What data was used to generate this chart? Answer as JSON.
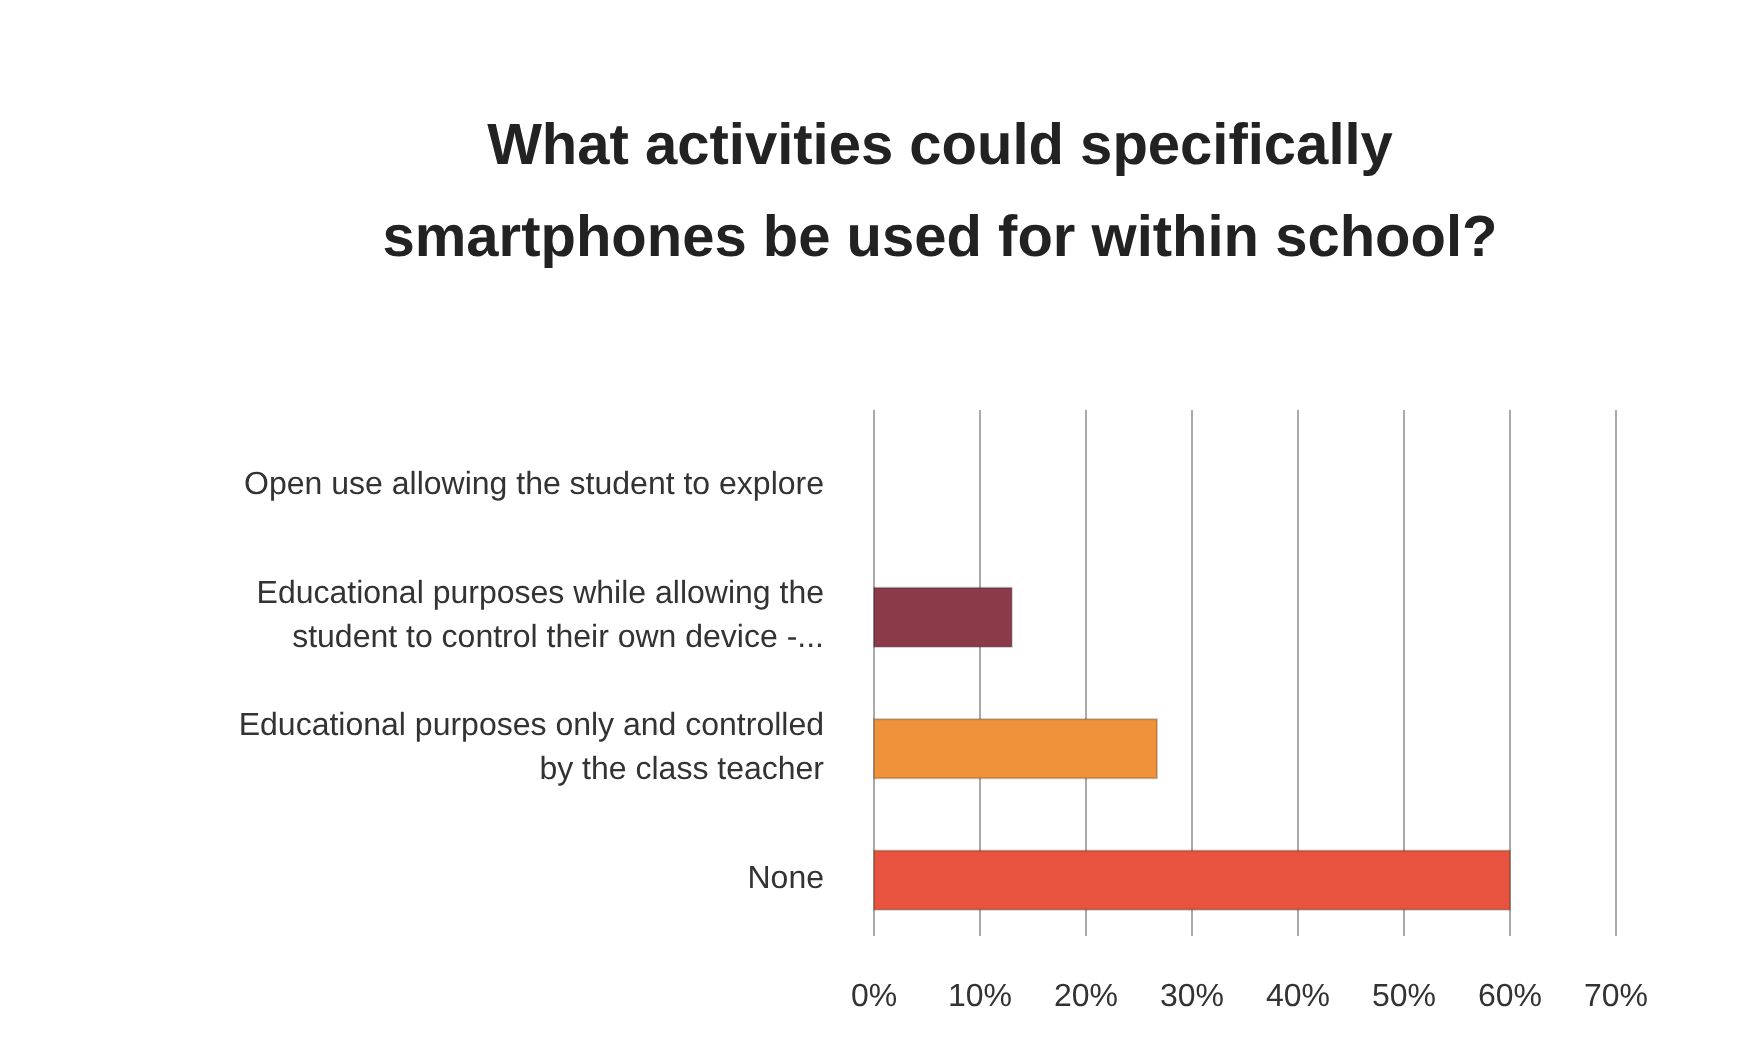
{
  "chart_data": {
    "type": "bar",
    "orientation": "horizontal",
    "title": "What activities could specifically smartphones be used for within school?",
    "categories": [
      "Open use allowing the student to explore",
      "Educational purposes while allowing the student to control their own device -...",
      "Educational purposes only and controlled by the class teacher",
      "None"
    ],
    "values": [
      0,
      13,
      26.7,
      60
    ],
    "colors": [
      null,
      "#8b3a4a",
      "#f0923a",
      "#e8533f"
    ],
    "xlim": [
      0,
      70
    ],
    "xticks": [
      {
        "value": 0,
        "label": "0%"
      },
      {
        "value": 10,
        "label": "10%"
      },
      {
        "value": 20,
        "label": "20%"
      },
      {
        "value": 30,
        "label": "30%"
      },
      {
        "value": 40,
        "label": "40%"
      },
      {
        "value": 50,
        "label": "50%"
      },
      {
        "value": 60,
        "label": "60%"
      },
      {
        "value": 70,
        "label": "70%"
      }
    ],
    "grid": "x"
  }
}
